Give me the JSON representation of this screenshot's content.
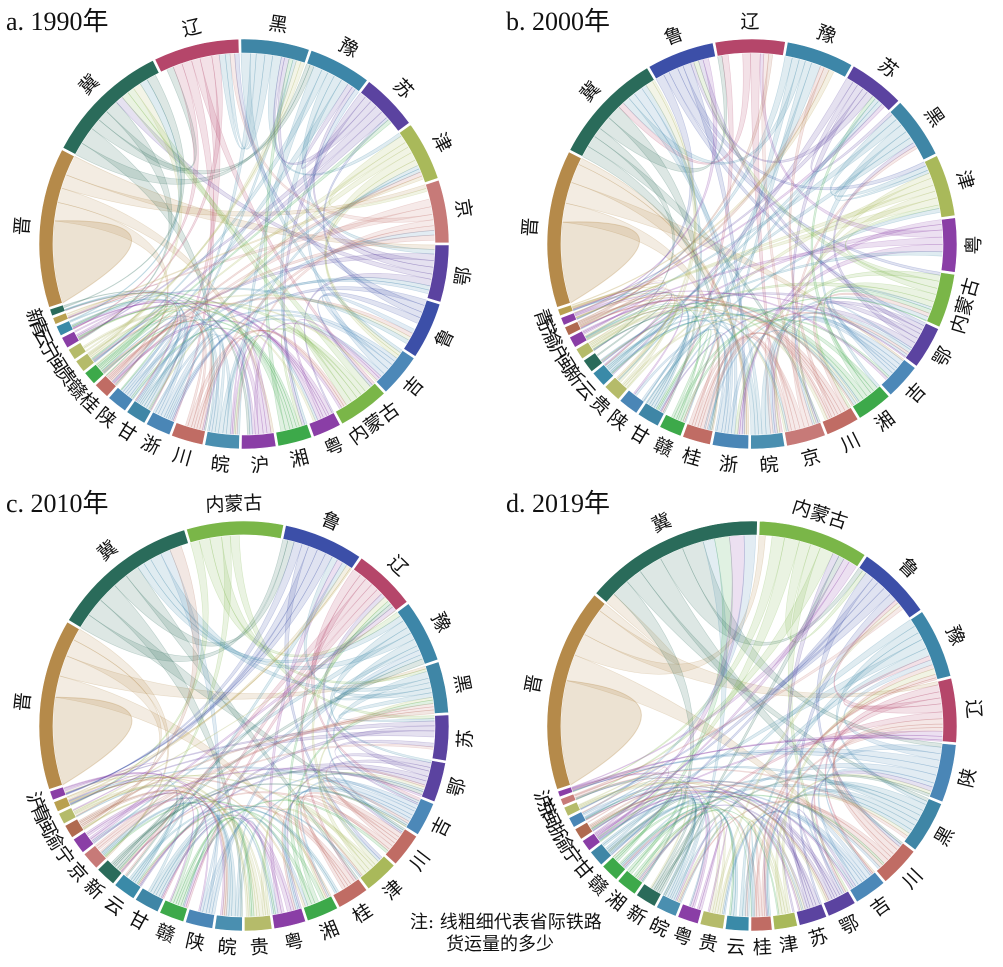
{
  "colors": {
    "冀": "#2a6b5a",
    "晋": "#b58a4a",
    "内蒙古": "#7ab648",
    "鲁": "#3c4fa8",
    "辽": "#b5466a",
    "黑": "#3f86a6",
    "豫": "#3d86a8",
    "苏": "#5b43a0",
    "津": "#a9b95a",
    "京": "#c77a78",
    "鄂": "#5b43a0",
    "吉": "#4c88b8",
    "粤": "#8a3ea6",
    "湘": "#3da94a",
    "沪": "#8a3ea6",
    "皖": "#4a8fb0",
    "川": "#c06c64",
    "浙": "#4a86b6",
    "甘": "#3f86a6",
    "陕": "#4a86b6",
    "桂": "#c06c64",
    "赣": "#3da94a",
    "贵": "#b5bb6a",
    "闽": "#b5bb6a",
    "宁": "#8a3ea6",
    "云": "#3a8aa8",
    "青": "#b9a050",
    "新": "#2a6b5a",
    "渝": "#b06a50"
  },
  "chart_data": [
    {
      "type": "chord",
      "title": "a. 1990年",
      "regions": [
        {
          "name": "晋",
          "value": 140
        },
        {
          "name": "冀",
          "value": 110
        },
        {
          "name": "辽",
          "value": 75
        },
        {
          "name": "黑",
          "value": 60
        },
        {
          "name": "豫",
          "value": 55
        },
        {
          "name": "苏",
          "value": 50
        },
        {
          "name": "津",
          "value": 52
        },
        {
          "name": "京",
          "value": 55
        },
        {
          "name": "鄂",
          "value": 50
        },
        {
          "name": "鲁",
          "value": 50
        },
        {
          "name": "吉",
          "value": 38
        },
        {
          "name": "内蒙古",
          "value": 45
        },
        {
          "name": "粤",
          "value": 25
        },
        {
          "name": "湘",
          "value": 30
        },
        {
          "name": "沪",
          "value": 30
        },
        {
          "name": "皖",
          "value": 30
        },
        {
          "name": "川",
          "value": 28
        },
        {
          "name": "浙",
          "value": 22
        },
        {
          "name": "甘",
          "value": 18
        },
        {
          "name": "陕",
          "value": 18
        },
        {
          "name": "桂",
          "value": 14
        },
        {
          "name": "赣",
          "value": 12
        },
        {
          "name": "贵",
          "value": 11
        },
        {
          "name": "闽",
          "value": 10
        },
        {
          "name": "宁",
          "value": 10
        },
        {
          "name": "云",
          "value": 9
        },
        {
          "name": "青",
          "value": 6
        },
        {
          "name": "新",
          "value": 6
        }
      ]
    },
    {
      "type": "chord",
      "title": "b. 2000年",
      "regions": [
        {
          "name": "晋",
          "value": 140
        },
        {
          "name": "冀",
          "value": 100
        },
        {
          "name": "鲁",
          "value": 60
        },
        {
          "name": "辽",
          "value": 62
        },
        {
          "name": "豫",
          "value": 60
        },
        {
          "name": "苏",
          "value": 50
        },
        {
          "name": "黑",
          "value": 55
        },
        {
          "name": "津",
          "value": 55
        },
        {
          "name": "粤",
          "value": 48
        },
        {
          "name": "内蒙古",
          "value": 48
        },
        {
          "name": "鄂",
          "value": 38
        },
        {
          "name": "吉",
          "value": 32
        },
        {
          "name": "湘",
          "value": 32
        },
        {
          "name": "川",
          "value": 30
        },
        {
          "name": "京",
          "value": 35
        },
        {
          "name": "皖",
          "value": 30
        },
        {
          "name": "浙",
          "value": 32
        },
        {
          "name": "桂",
          "value": 25
        },
        {
          "name": "赣",
          "value": 20
        },
        {
          "name": "甘",
          "value": 20
        },
        {
          "name": "陕",
          "value": 18
        },
        {
          "name": "贵",
          "value": 16
        },
        {
          "name": "云",
          "value": 14
        },
        {
          "name": "新",
          "value": 12
        },
        {
          "name": "闽",
          "value": 10
        },
        {
          "name": "沪",
          "value": 10
        },
        {
          "name": "渝",
          "value": 8
        },
        {
          "name": "宁",
          "value": 7
        },
        {
          "name": "青",
          "value": 6
        }
      ]
    },
    {
      "type": "chord",
      "title": "c. 2010年",
      "regions": [
        {
          "name": "晋",
          "value": 150
        },
        {
          "name": "冀",
          "value": 130
        },
        {
          "name": "内蒙古",
          "value": 85
        },
        {
          "name": "鲁",
          "value": 70
        },
        {
          "name": "辽",
          "value": 55
        },
        {
          "name": "豫",
          "value": 55
        },
        {
          "name": "黑",
          "value": 45
        },
        {
          "name": "苏",
          "value": 40
        },
        {
          "name": "鄂",
          "value": 35
        },
        {
          "name": "吉",
          "value": 30
        },
        {
          "name": "川",
          "value": 30
        },
        {
          "name": "津",
          "value": 30
        },
        {
          "name": "桂",
          "value": 28
        },
        {
          "name": "湘",
          "value": 28
        },
        {
          "name": "粤",
          "value": 28
        },
        {
          "name": "贵",
          "value": 24
        },
        {
          "name": "皖",
          "value": 24
        },
        {
          "name": "陕",
          "value": 24
        },
        {
          "name": "赣",
          "value": 22
        },
        {
          "name": "甘",
          "value": 22
        },
        {
          "name": "云",
          "value": 20
        },
        {
          "name": "新",
          "value": 18
        },
        {
          "name": "京",
          "value": 16
        },
        {
          "name": "宁",
          "value": 14
        },
        {
          "name": "渝",
          "value": 12
        },
        {
          "name": "闽",
          "value": 10
        },
        {
          "name": "青",
          "value": 9
        },
        {
          "name": "沪",
          "value": 8
        }
      ]
    },
    {
      "type": "chord",
      "title": "d. 2019年",
      "regions": [
        {
          "name": "晋",
          "value": 175
        },
        {
          "name": "冀",
          "value": 155
        },
        {
          "name": "内蒙古",
          "value": 95
        },
        {
          "name": "鲁",
          "value": 65
        },
        {
          "name": "豫",
          "value": 60
        },
        {
          "name": "辽",
          "value": 55
        },
        {
          "name": "陕",
          "value": 50
        },
        {
          "name": "黑",
          "value": 45
        },
        {
          "name": "川",
          "value": 35
        },
        {
          "name": "吉",
          "value": 28
        },
        {
          "name": "鄂",
          "value": 25
        },
        {
          "name": "苏",
          "value": 24
        },
        {
          "name": "津",
          "value": 20
        },
        {
          "name": "桂",
          "value": 18
        },
        {
          "name": "云",
          "value": 20
        },
        {
          "name": "贵",
          "value": 20
        },
        {
          "name": "粤",
          "value": 18
        },
        {
          "name": "皖",
          "value": 18
        },
        {
          "name": "新",
          "value": 18
        },
        {
          "name": "湘",
          "value": 18
        },
        {
          "name": "赣",
          "value": 16
        },
        {
          "name": "甘",
          "value": 14
        },
        {
          "name": "宁",
          "value": 10
        },
        {
          "name": "渝",
          "value": 10
        },
        {
          "name": "浙",
          "value": 9
        },
        {
          "name": "闽",
          "value": 8
        },
        {
          "name": "京",
          "value": 6
        },
        {
          "name": "沪",
          "value": 5
        }
      ]
    }
  ],
  "note": {
    "line1": "注: 线粗细代表省际铁路",
    "line2": "货运量的多少"
  }
}
